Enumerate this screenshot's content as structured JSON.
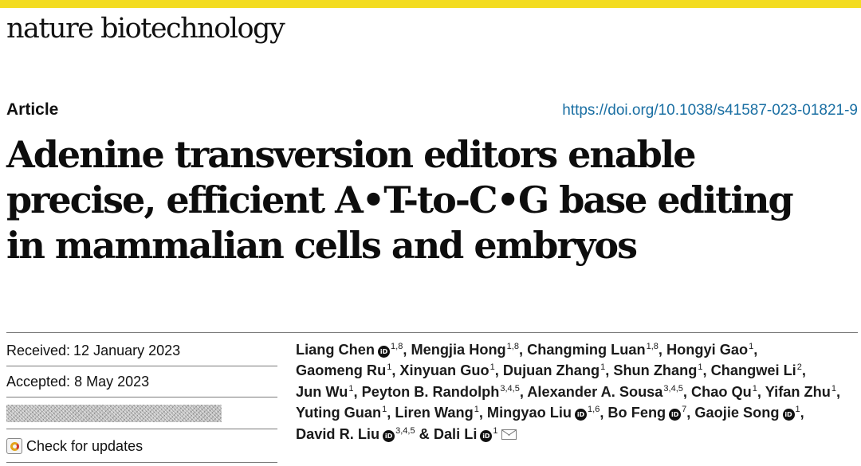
{
  "colors": {
    "accent_bar": "#f3dc21",
    "link": "#1a6fa3",
    "orcid": "#111111"
  },
  "journal_name": "nature biotechnology",
  "article_type": "Article",
  "doi": "https://doi.org/10.1038/s41587-023-01821-9",
  "title_lines": [
    "Adenine transversion editors enable",
    "precise, efficient A•T-to-C•G base editing",
    "in mammalian cells and embryos"
  ],
  "received": {
    "label": "Received:",
    "date": "12 January 2023"
  },
  "accepted": {
    "label": "Accepted: ",
    "date": "8 May 2023"
  },
  "check_updates": "Check for updates",
  "orcid_glyph": "iD",
  "authors": [
    {
      "name": "Liang Chen",
      "sup": "1,8",
      "orcid": true,
      "sep": ", "
    },
    {
      "name": "Mengjia Hong",
      "sup": "1,8",
      "orcid": false,
      "sep": ", "
    },
    {
      "name": "Changming Luan",
      "sup": "1,8",
      "orcid": false,
      "sep": ", "
    },
    {
      "name": "Hongyi Gao",
      "sup": "1",
      "orcid": false,
      "sep": ", "
    },
    {
      "name": "Gaomeng Ru",
      "sup": "1",
      "orcid": false,
      "sep": ", "
    },
    {
      "name": "Xinyuan Guo",
      "sup": "1",
      "orcid": false,
      "sep": ", "
    },
    {
      "name": "Dujuan Zhang",
      "sup": "1",
      "orcid": false,
      "sep": ", "
    },
    {
      "name": "Shun Zhang",
      "sup": "1",
      "orcid": false,
      "sep": ", "
    },
    {
      "name": "Changwei Li",
      "sup": "2",
      "orcid": false,
      "sep": ", "
    },
    {
      "name": "Jun Wu",
      "sup": "1",
      "orcid": false,
      "sep": ", "
    },
    {
      "name": "Peyton B. Randolph",
      "sup": "3,4,5",
      "orcid": false,
      "sep": ", "
    },
    {
      "name": "Alexander A. Sousa",
      "sup": "3,4,5",
      "orcid": false,
      "sep": ", "
    },
    {
      "name": "Chao Qu",
      "sup": "1",
      "orcid": false,
      "sep": ", "
    },
    {
      "name": "Yifan Zhu",
      "sup": "1",
      "orcid": false,
      "sep": ", "
    },
    {
      "name": "Yuting Guan",
      "sup": "1",
      "orcid": false,
      "sep": ", "
    },
    {
      "name": "Liren Wang",
      "sup": "1",
      "orcid": false,
      "sep": ", "
    },
    {
      "name": "Mingyao Liu",
      "sup": "1,6",
      "orcid": true,
      "sep": ", "
    },
    {
      "name": "Bo Feng",
      "sup": "7",
      "orcid": true,
      "sep": ", "
    },
    {
      "name": "Gaojie Song",
      "sup": "1",
      "orcid": true,
      "sep": ", "
    },
    {
      "name": "David R. Liu",
      "sup": "3,4,5",
      "orcid": true,
      "sep": " & "
    },
    {
      "name": "Dali Li",
      "sup": "1",
      "orcid": true,
      "sep": "",
      "email": true
    }
  ]
}
